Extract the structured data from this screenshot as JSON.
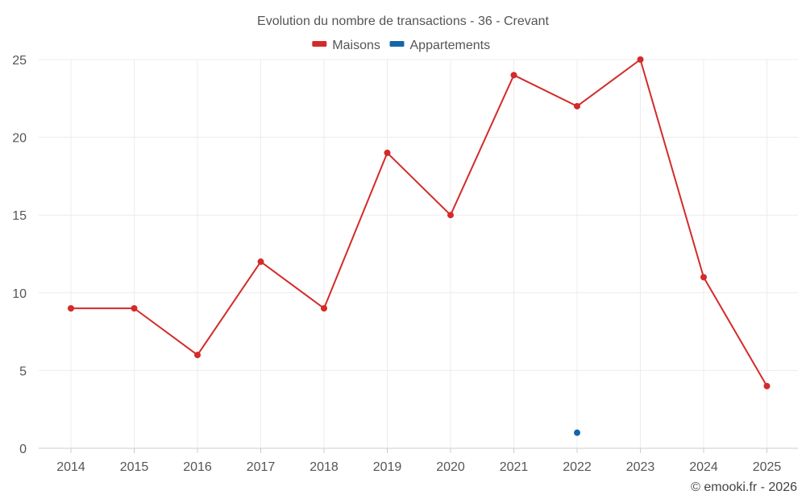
{
  "chart_data": {
    "type": "line",
    "title": "Evolution du nombre de transactions - 36 - Crevant",
    "categories": [
      "2014",
      "2015",
      "2016",
      "2017",
      "2018",
      "2019",
      "2020",
      "2021",
      "2022",
      "2023",
      "2024",
      "2025"
    ],
    "series": [
      {
        "name": "Maisons",
        "color": "#d42a2a",
        "values": [
          9,
          9,
          6,
          12,
          9,
          19,
          15,
          24,
          22,
          25,
          11,
          4
        ]
      },
      {
        "name": "Appartements",
        "color": "#1565a8",
        "values": [
          null,
          null,
          null,
          null,
          null,
          null,
          null,
          null,
          1,
          null,
          null,
          null
        ]
      }
    ],
    "ylim": [
      0,
      25
    ],
    "yticks": [
      0,
      5,
      10,
      15,
      20,
      25
    ],
    "xlabel": "",
    "ylabel": "",
    "grid": true,
    "legend": "top-center"
  },
  "credit": "© emooki.fr - 2026"
}
